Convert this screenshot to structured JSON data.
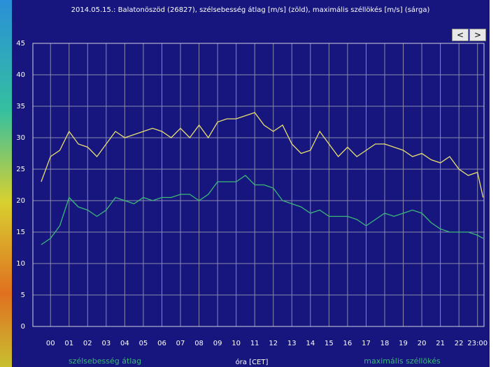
{
  "chart_data": {
    "type": "line",
    "title": "2014.05.15.: Balatonöszöd (26827), szélsebesség átlag [m/s] (zöld), maximális széllökés [m/s] (sárga)",
    "xlabel": "óra [CET]",
    "x": [
      -0.5,
      0,
      0.5,
      1,
      1.5,
      2,
      2.5,
      3,
      3.5,
      4,
      4.5,
      5,
      5.5,
      6,
      6.5,
      7,
      7.5,
      8,
      8.5,
      9,
      9.5,
      10,
      10.5,
      11,
      11.5,
      12,
      12.5,
      13,
      13.5,
      14,
      14.5,
      15,
      15.5,
      16,
      16.5,
      17,
      17.5,
      18,
      18.5,
      19,
      19.5,
      20,
      20.5,
      21,
      21.5,
      22,
      22.5,
      23,
      23.3
    ],
    "series": [
      {
        "name": "szélsebesség átlag",
        "color": "#3cb878",
        "values": [
          13,
          14,
          16,
          20.5,
          19,
          18.5,
          17.5,
          18.5,
          20.5,
          20,
          19.5,
          20.5,
          20,
          20.5,
          20.5,
          21,
          21,
          20,
          21,
          23,
          23,
          23,
          24,
          22.5,
          22.5,
          22,
          20,
          19.5,
          19,
          18,
          18.5,
          17.5,
          17.5,
          17.5,
          17,
          16,
          17,
          18,
          17.5,
          18,
          18.5,
          18,
          16.5,
          15.5,
          15,
          15,
          15,
          14.5,
          14
        ]
      },
      {
        "name": "maximális széllökés",
        "color": "#e8e070",
        "values": [
          23,
          27,
          28,
          31,
          29,
          28.5,
          27,
          29,
          31,
          30,
          30.5,
          31,
          31.5,
          31,
          30,
          31.5,
          30,
          32,
          30,
          32.5,
          33,
          33,
          33.5,
          34,
          32,
          31,
          32,
          29,
          27.5,
          28,
          31,
          29,
          27,
          28.5,
          27,
          28,
          29,
          29,
          28.5,
          28,
          27,
          27.5,
          26.5,
          26,
          27,
          25,
          24,
          24.5,
          20.5
        ]
      }
    ],
    "xlim": [
      -0.95,
      23.35
    ],
    "xticks": [
      {
        "value": 0,
        "label": "00"
      },
      {
        "value": 1,
        "label": "01"
      },
      {
        "value": 2,
        "label": "02"
      },
      {
        "value": 3,
        "label": "03"
      },
      {
        "value": 4,
        "label": "04"
      },
      {
        "value": 5,
        "label": "05"
      },
      {
        "value": 6,
        "label": "06"
      },
      {
        "value": 7,
        "label": "07"
      },
      {
        "value": 8,
        "label": "08"
      },
      {
        "value": 9,
        "label": "09"
      },
      {
        "value": 10,
        "label": "10"
      },
      {
        "value": 11,
        "label": "11"
      },
      {
        "value": 12,
        "label": "12"
      },
      {
        "value": 13,
        "label": "13"
      },
      {
        "value": 14,
        "label": "14"
      },
      {
        "value": 15,
        "label": "15"
      },
      {
        "value": 16,
        "label": "16"
      },
      {
        "value": 17,
        "label": "17"
      },
      {
        "value": 18,
        "label": "18"
      },
      {
        "value": 19,
        "label": "19"
      },
      {
        "value": 20,
        "label": "20"
      },
      {
        "value": 21,
        "label": "21"
      },
      {
        "value": 22,
        "label": "22"
      },
      {
        "value": 23,
        "label": "23:00"
      }
    ],
    "ylim": [
      0,
      45
    ],
    "yticks": [
      0,
      5,
      10,
      15,
      20,
      25,
      30,
      35,
      40,
      45
    ],
    "grid": true
  },
  "buttons": [
    "<",
    ">"
  ]
}
